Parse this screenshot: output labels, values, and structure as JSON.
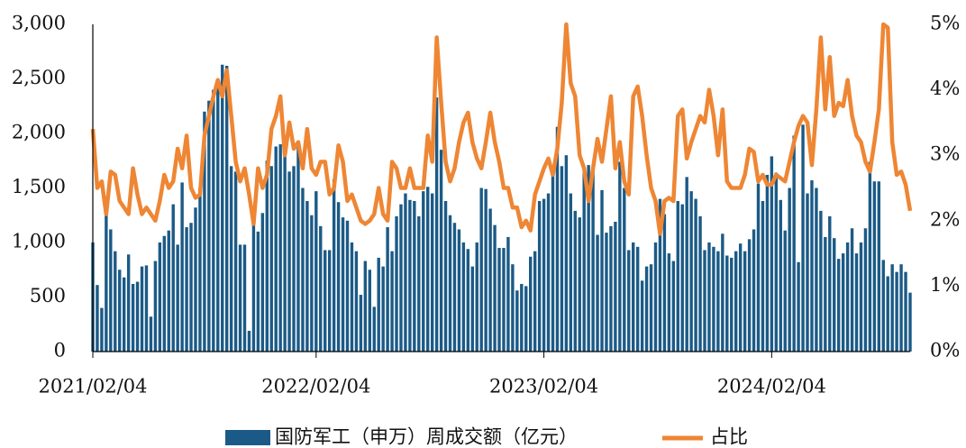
{
  "chart_data": {
    "type": "bar-line",
    "categories": [
      "2021/02/04",
      null,
      null,
      null,
      null,
      null,
      null,
      null,
      null,
      null,
      null,
      null,
      null,
      null,
      null,
      null,
      null,
      null,
      null,
      null,
      null,
      null,
      null,
      null,
      null,
      null,
      null,
      null,
      null,
      null,
      null,
      null,
      null,
      null,
      null,
      null,
      null,
      null,
      null,
      null,
      null,
      null,
      null,
      null,
      null,
      null,
      null,
      null,
      null,
      null,
      "2022/02/04",
      null,
      null,
      null,
      null,
      null,
      null,
      null,
      null,
      null,
      null,
      null,
      null,
      null,
      null,
      null,
      null,
      null,
      null,
      null,
      null,
      null,
      null,
      null,
      null,
      null,
      null,
      null,
      null,
      null,
      null,
      null,
      null,
      null,
      null,
      null,
      null,
      null,
      null,
      null,
      null,
      null,
      null,
      null,
      null,
      null,
      null,
      null,
      null,
      null,
      null,
      "2023/02/04",
      null,
      null,
      null,
      null,
      null,
      null,
      null,
      null,
      null,
      null,
      null,
      null,
      null,
      null,
      null,
      null,
      null,
      null,
      null,
      null,
      null,
      null,
      null,
      null,
      null,
      null,
      null,
      null,
      null,
      null,
      null,
      null,
      null,
      null,
      null,
      null,
      null,
      null,
      null,
      null,
      null,
      null,
      null,
      null,
      null,
      null,
      null,
      null,
      null,
      null,
      "2024/02/04",
      null,
      null,
      null,
      null,
      null,
      null,
      null,
      null,
      null,
      null,
      null,
      null,
      null,
      null,
      null,
      null,
      null,
      null,
      null,
      null,
      null,
      null,
      null,
      null,
      null,
      null,
      null,
      null,
      null,
      null,
      null
    ],
    "series": [
      {
        "name": "国防军工（申万）周成交额（亿元）",
        "color": "#1b5a86",
        "values": [
          1000,
          610,
          400,
          1350,
          1120,
          920,
          750,
          680,
          890,
          620,
          640,
          780,
          790,
          320,
          830,
          1000,
          1060,
          1110,
          1350,
          980,
          1550,
          1140,
          1180,
          1320,
          1500,
          2200,
          2300,
          2400,
          2500,
          2630,
          2620,
          1700,
          1650,
          980,
          980,
          190,
          1200,
          1100,
          1270,
          1750,
          1700,
          1880,
          1900,
          1800,
          1650,
          1700,
          1900,
          1500,
          1380,
          1250,
          1470,
          1150,
          930,
          930,
          1580,
          1370,
          1230,
          1200,
          1000,
          920,
          520,
          830,
          750,
          410,
          860,
          780,
          1140,
          920,
          1240,
          1350,
          1450,
          1390,
          1380,
          1240,
          1470,
          1510,
          1450,
          2330,
          1850,
          1380,
          1250,
          1180,
          1120,
          1000,
          940,
          780,
          1000,
          1500,
          1490,
          1310,
          1160,
          950,
          950,
          1050,
          800,
          560,
          620,
          600,
          870,
          920,
          1380,
          1400,
          1450,
          1640,
          2060,
          1700,
          1800,
          1450,
          1290,
          1230,
          1680,
          1710,
          1660,
          1070,
          1480,
          1090,
          1150,
          1190,
          1740,
          1500,
          930,
          1000,
          960,
          650,
          780,
          800,
          1000,
          1400,
          1260,
          900,
          830,
          1380,
          1350,
          1600,
          1470,
          1400,
          1240,
          930,
          1000,
          960,
          920,
          1080,
          880,
          860,
          920,
          990,
          920,
          1030,
          1120,
          1540,
          1380,
          1620,
          1790,
          1640,
          1390,
          1110,
          1500,
          1980,
          820,
          2080,
          1450,
          1570,
          1500,
          1290,
          1050,
          1240,
          1040,
          850,
          900,
          1000,
          1130,
          900,
          1000,
          1130,
          1740,
          1560,
          1560,
          840,
          690,
          800,
          730,
          800,
          730,
          540
        ]
      },
      {
        "name": "占比",
        "color": "#ee8634",
        "axis": "y2",
        "values": [
          3.4,
          2.5,
          2.6,
          2.1,
          2.75,
          2.7,
          2.3,
          2.2,
          2.1,
          2.8,
          2.4,
          2.1,
          2.2,
          2.1,
          2.0,
          2.3,
          2.7,
          2.5,
          2.6,
          3.1,
          2.8,
          3.3,
          2.5,
          2.35,
          2.4,
          3.3,
          3.6,
          3.9,
          4.15,
          3.9,
          4.3,
          3.6,
          2.9,
          2.6,
          2.8,
          2.4,
          1.95,
          2.8,
          2.5,
          2.7,
          3.4,
          3.6,
          3.9,
          3.0,
          3.5,
          3.1,
          3.2,
          2.8,
          3.4,
          2.8,
          2.7,
          2.9,
          2.9,
          2.4,
          2.5,
          3.15,
          2.9,
          2.3,
          2.4,
          2.2,
          2.0,
          1.95,
          2.0,
          2.1,
          2.5,
          2.1,
          2.0,
          2.9,
          2.8,
          2.5,
          2.5,
          2.8,
          2.5,
          2.5,
          2.5,
          3.3,
          2.9,
          4.8,
          3.8,
          2.9,
          2.6,
          2.8,
          3.2,
          3.5,
          3.65,
          3.2,
          2.95,
          2.8,
          3.2,
          3.65,
          3.2,
          2.9,
          2.5,
          2.5,
          2.2,
          2.2,
          1.9,
          2.0,
          1.85,
          2.4,
          2.6,
          2.8,
          2.95,
          2.7,
          3.1,
          3.8,
          5.0,
          4.1,
          3.9,
          3.0,
          2.8,
          2.3,
          2.8,
          3.25,
          2.9,
          3.4,
          3.9,
          2.8,
          3.2,
          2.6,
          2.4,
          3.9,
          4.05,
          3.6,
          3.0,
          2.5,
          2.3,
          1.8,
          2.3,
          2.35,
          2.3,
          3.6,
          3.7,
          2.95,
          3.2,
          3.4,
          3.6,
          3.5,
          4.0,
          3.6,
          3.0,
          3.7,
          2.6,
          2.5,
          2.5,
          2.5,
          2.7,
          3.1,
          3.05,
          2.6,
          2.7,
          2.55,
          2.55,
          2.7,
          2.65,
          2.6,
          2.9,
          3.2,
          3.45,
          3.6,
          3.5,
          2.85,
          3.7,
          4.8,
          3.7,
          4.5,
          3.6,
          3.8,
          3.75,
          4.15,
          3.6,
          3.3,
          3.2,
          2.9,
          2.75,
          3.2,
          3.7,
          5.0,
          4.95,
          3.2,
          2.7,
          2.75,
          2.55,
          2.15
        ]
      }
    ],
    "ylim": [
      0,
      3000
    ],
    "yticks": [
      0,
      500,
      {
        "value": 1000,
        "label": "1,000"
      },
      {
        "value": 1500,
        "label": "1,500"
      },
      {
        "value": 2000,
        "label": "2,000"
      },
      {
        "value": 2500,
        "label": "2,500"
      },
      {
        "value": 3000,
        "label": "3,000"
      }
    ],
    "y2lim": [
      0,
      5
    ],
    "y2ticks": [
      {
        "value": 0,
        "label": "0%"
      },
      {
        "value": 1,
        "label": "1%"
      },
      {
        "value": 2,
        "label": "2%"
      },
      {
        "value": 3,
        "label": "3%"
      },
      {
        "value": 4,
        "label": "4%"
      },
      {
        "value": 5,
        "label": "5%"
      }
    ],
    "grid": false,
    "legend": "bottom"
  }
}
